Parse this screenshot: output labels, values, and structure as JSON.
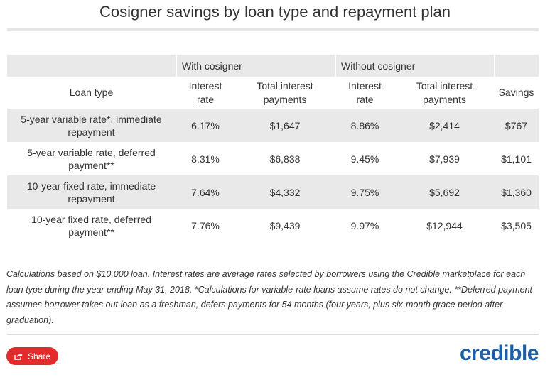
{
  "title": "Cosigner savings by loan type and repayment plan",
  "table": {
    "group_headers": [
      "With cosigner",
      "Without cosigner"
    ],
    "column_headers": {
      "loan_type": "Loan type",
      "with_rate": [
        "Interest",
        "rate"
      ],
      "with_total": [
        "Total interest",
        "payments"
      ],
      "without_rate": [
        "Interest",
        "rate"
      ],
      "without_total": [
        "Total interest",
        "payments"
      ],
      "savings": "Savings"
    },
    "rows": [
      {
        "loan_type": [
          "5-year variable rate*, immediate",
          "repayment"
        ],
        "with_rate": "6.17%",
        "with_total": "$1,647",
        "without_rate": "8.86%",
        "without_total": "$2,414",
        "savings": "$767"
      },
      {
        "loan_type": [
          "5-year variable rate, deferred",
          "payment**"
        ],
        "with_rate": "8.31%",
        "with_total": "$6,838",
        "without_rate": "9.45%",
        "without_total": "$7,939",
        "savings": "$1,101"
      },
      {
        "loan_type": [
          "10-year fixed rate, immediate",
          "repayment"
        ],
        "with_rate": "7.64%",
        "with_total": "$4,332",
        "without_rate": "9.75%",
        "without_total": "$5,692",
        "savings": "$1,360"
      },
      {
        "loan_type": [
          "10-year fixed rate, deferred",
          "payment**"
        ],
        "with_rate": "7.76%",
        "with_total": "$9,439",
        "without_rate": "9.97%",
        "without_total": "$12,944",
        "savings": "$3,505"
      }
    ]
  },
  "footnote": "Calculations based on $10,000 loan. Interest rates are average rates selected by borrowers using the Credible marketplace for each loan type during the year ending May 31, 2018. *Calculations for variable-rate loans assume rates do not change. **Deferred payment assumes borrower takes out loan as a freshman, defers payments for 54 months (four years, plus six-month grace period after graduation).",
  "share": {
    "label": "Share",
    "icon": "share-icon"
  },
  "logo": "credible",
  "colors": {
    "share_button": "#e32b2b",
    "logo": "#1a5fa8",
    "row_shade": "#e9e9e9"
  }
}
